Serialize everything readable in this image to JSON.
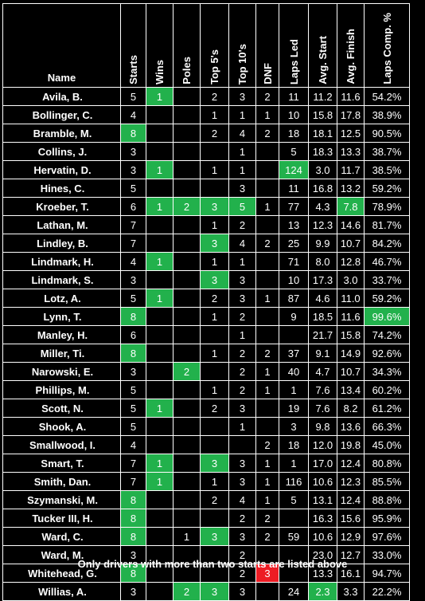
{
  "headers": [
    "Name",
    "Starts",
    "Wins",
    "Poles",
    "Top 5's",
    "Top 10's",
    "DNF",
    "Laps Led",
    "Avg. Start",
    "Avg. Finish",
    "Laps Comp. %"
  ],
  "rows": [
    {
      "cells": [
        "Avila, B.",
        "5",
        "1",
        "",
        "2",
        "3",
        "2",
        "11",
        "11.2",
        "11.6",
        "54.2%"
      ],
      "hl": [
        2
      ]
    },
    {
      "cells": [
        "Bollinger, C.",
        "4",
        "",
        "",
        "1",
        "1",
        "1",
        "10",
        "15.8",
        "17.8",
        "38.9%"
      ],
      "hl": []
    },
    {
      "cells": [
        "Bramble, M.",
        "8",
        "",
        "",
        "2",
        "4",
        "2",
        "18",
        "18.1",
        "12.5",
        "90.5%"
      ],
      "hl": [
        1
      ]
    },
    {
      "cells": [
        "Collins, J.",
        "3",
        "",
        "",
        "",
        "1",
        "",
        "5",
        "18.3",
        "13.3",
        "38.7%"
      ],
      "hl": []
    },
    {
      "cells": [
        "Hervatin, D.",
        "3",
        "1",
        "",
        "1",
        "1",
        "",
        "124",
        "3.0",
        "11.7",
        "38.5%"
      ],
      "hl": [
        2,
        7
      ]
    },
    {
      "cells": [
        "Hines, C.",
        "5",
        "",
        "",
        "",
        "3",
        "",
        "11",
        "16.8",
        "13.2",
        "59.2%"
      ],
      "hl": []
    },
    {
      "cells": [
        "Kroeber, T.",
        "6",
        "1",
        "2",
        "3",
        "5",
        "1",
        "77",
        "4.3",
        "7.8",
        "78.9%"
      ],
      "hl": [
        2,
        3,
        4,
        5,
        9
      ]
    },
    {
      "cells": [
        "Lathan, M.",
        "7",
        "",
        "",
        "1",
        "2",
        "",
        "13",
        "12.3",
        "14.6",
        "81.7%"
      ],
      "hl": []
    },
    {
      "cells": [
        "Lindley, B.",
        "7",
        "",
        "",
        "3",
        "4",
        "2",
        "25",
        "9.9",
        "10.7",
        "84.2%"
      ],
      "hl": [
        4
      ]
    },
    {
      "cells": [
        "Lindmark, H.",
        "4",
        "1",
        "",
        "1",
        "1",
        "",
        "71",
        "8.0",
        "12.8",
        "46.7%"
      ],
      "hl": [
        2
      ]
    },
    {
      "cells": [
        "Lindmark, S.",
        "3",
        "",
        "",
        "3",
        "3",
        "",
        "10",
        "17.3",
        "3.0",
        "33.7%"
      ],
      "hl": [
        4
      ]
    },
    {
      "cells": [
        "Lotz, A.",
        "5",
        "1",
        "",
        "2",
        "3",
        "1",
        "87",
        "4.6",
        "11.0",
        "59.2%"
      ],
      "hl": [
        2
      ]
    },
    {
      "cells": [
        "Lynn, T.",
        "8",
        "",
        "",
        "1",
        "2",
        "",
        "9",
        "18.5",
        "11.6",
        "99.6%"
      ],
      "hl": [
        1,
        10
      ]
    },
    {
      "cells": [
        "Manley, H.",
        "6",
        "",
        "",
        "",
        "1",
        "",
        "",
        "21.7",
        "15.8",
        "74.2%"
      ],
      "hl": []
    },
    {
      "cells": [
        "Miller, Ti.",
        "8",
        "",
        "",
        "1",
        "2",
        "2",
        "37",
        "9.1",
        "14.9",
        "92.6%"
      ],
      "hl": [
        1
      ]
    },
    {
      "cells": [
        "Narowski, E.",
        "3",
        "",
        "2",
        "",
        "2",
        "1",
        "40",
        "4.7",
        "10.7",
        "34.3%"
      ],
      "hl": [
        3
      ]
    },
    {
      "cells": [
        "Phillips, M.",
        "5",
        "",
        "",
        "1",
        "2",
        "1",
        "1",
        "7.6",
        "13.4",
        "60.2%"
      ],
      "hl": []
    },
    {
      "cells": [
        "Scott, N.",
        "5",
        "1",
        "",
        "2",
        "3",
        "",
        "19",
        "7.6",
        "8.2",
        "61.2%"
      ],
      "hl": [
        2
      ]
    },
    {
      "cells": [
        "Shook, A.",
        "5",
        "",
        "",
        "",
        "1",
        "",
        "3",
        "9.8",
        "13.6",
        "66.3%"
      ],
      "hl": []
    },
    {
      "cells": [
        "Smallwood, I.",
        "4",
        "",
        "",
        "",
        "",
        "2",
        "18",
        "12.0",
        "19.8",
        "45.0%"
      ],
      "hl": []
    },
    {
      "cells": [
        "Smart, T.",
        "7",
        "1",
        "",
        "3",
        "3",
        "1",
        "1",
        "17.0",
        "12.4",
        "80.8%"
      ],
      "hl": [
        2,
        4
      ]
    },
    {
      "cells": [
        "Smith, Dan.",
        "7",
        "1",
        "",
        "1",
        "3",
        "1",
        "116",
        "10.6",
        "12.3",
        "85.5%"
      ],
      "hl": [
        2
      ]
    },
    {
      "cells": [
        "Szymanski, M.",
        "8",
        "",
        "",
        "2",
        "4",
        "1",
        "5",
        "13.1",
        "12.4",
        "88.8%"
      ],
      "hl": [
        1
      ]
    },
    {
      "cells": [
        "Tucker III, H.",
        "8",
        "",
        "",
        "",
        "2",
        "2",
        "",
        "16.3",
        "15.6",
        "95.9%"
      ],
      "hl": [
        1
      ]
    },
    {
      "cells": [
        "Ward, C.",
        "8",
        "",
        "1",
        "3",
        "3",
        "2",
        "59",
        "10.6",
        "12.9",
        "97.6%"
      ],
      "hl": [
        1,
        4
      ]
    },
    {
      "cells": [
        "Ward, M.",
        "3",
        "",
        "",
        "",
        "2",
        "",
        "",
        "23.0",
        "12.7",
        "33.0%"
      ],
      "hl": []
    },
    {
      "cells": [
        "Whitehead, G.",
        "8",
        "",
        "",
        "",
        "2",
        "3",
        "",
        "13.3",
        "16.1",
        "94.7%"
      ],
      "hl": [
        1
      ],
      "red": [
        6
      ]
    },
    {
      "cells": [
        "Willias, A.",
        "3",
        "",
        "2",
        "3",
        "3",
        "",
        "24",
        "2.3",
        "3.3",
        "22.2%"
      ],
      "hl": [
        3,
        4,
        8
      ]
    }
  ],
  "footnote": "Only drivers with more than two starts are listed above",
  "colors": {
    "highlight": "#22b14c",
    "alert": "#ed1c24",
    "background": "#000000",
    "grid": "#ffffff"
  }
}
